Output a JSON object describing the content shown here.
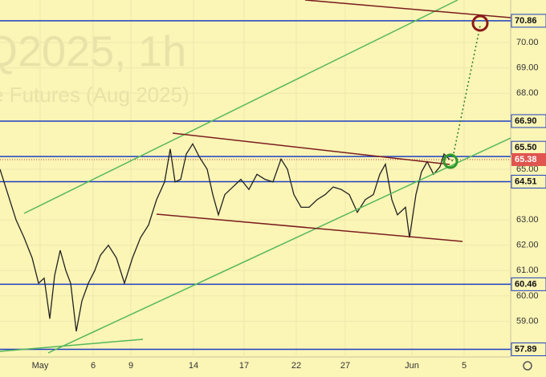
{
  "chart_data": {
    "type": "line",
    "watermark": {
      "title": "Q2025, 1h",
      "subtitle": "e Futures (Aug 2025)"
    },
    "xlim": [
      0,
      636
    ],
    "ylim": [
      57.59,
      71.68
    ],
    "xticks": [
      {
        "value": 50,
        "label": "May"
      },
      {
        "value": 116,
        "label": "6"
      },
      {
        "value": 163,
        "label": "9"
      },
      {
        "value": 241,
        "label": "14"
      },
      {
        "value": 304,
        "label": "17"
      },
      {
        "value": 369,
        "label": "22"
      },
      {
        "value": 430,
        "label": "27"
      },
      {
        "value": 513,
        "label": "Jun"
      },
      {
        "value": 578,
        "label": "5"
      }
    ],
    "yticks": [
      {
        "value": 70,
        "label": "70.00"
      },
      {
        "value": 69,
        "label": "69.00"
      },
      {
        "value": 68,
        "label": "68.00"
      },
      {
        "value": 65,
        "label": "65.00"
      },
      {
        "value": 63,
        "label": "63.00"
      },
      {
        "value": 62,
        "label": "62.00"
      },
      {
        "value": 61,
        "label": "61.00"
      },
      {
        "value": 60,
        "label": "60.00"
      },
      {
        "value": 59,
        "label": "59.00"
      }
    ],
    "levels": [
      {
        "value": 70.86,
        "label": "70.86"
      },
      {
        "value": 66.9,
        "label": "66.90"
      },
      {
        "value": 65.5,
        "label": "65.50"
      },
      {
        "value": 64.51,
        "label": "64.51"
      },
      {
        "value": 60.46,
        "label": "60.46"
      },
      {
        "value": 57.89,
        "label": "57.89"
      }
    ],
    "last_price": {
      "value": 65.38,
      "label": "65.38"
    },
    "x": [
      0,
      10,
      20,
      30,
      40,
      48,
      55,
      62,
      68,
      75,
      82,
      88,
      95,
      102,
      110,
      118,
      125,
      135,
      145,
      150,
      155,
      165,
      175,
      185,
      195,
      205,
      212,
      218,
      225,
      232,
      240,
      248,
      258,
      265,
      272,
      280,
      290,
      300,
      310,
      320,
      330,
      340,
      350,
      358,
      366,
      375,
      385,
      395,
      405,
      415,
      425,
      435,
      445,
      455,
      465,
      473,
      480,
      488,
      495,
      505,
      510,
      518,
      525,
      532,
      540,
      548,
      553,
      560
    ],
    "series": [
      {
        "color": "#222222",
        "values": [
          65.0,
          64.0,
          63.0,
          62.3,
          61.5,
          60.5,
          60.7,
          59.1,
          60.8,
          61.8,
          61.0,
          60.5,
          58.6,
          59.8,
          60.5,
          61.0,
          61.6,
          62.0,
          61.5,
          61.0,
          60.5,
          61.5,
          62.3,
          62.8,
          63.8,
          64.5,
          65.8,
          64.5,
          64.6,
          65.6,
          66.0,
          65.5,
          65.0,
          64.0,
          63.2,
          64.0,
          64.3,
          64.6,
          64.2,
          64.8,
          64.6,
          64.5,
          65.4,
          65.0,
          64.0,
          63.5,
          63.5,
          63.8,
          64.0,
          64.3,
          64.2,
          64.0,
          63.3,
          63.8,
          64.0,
          64.8,
          65.2,
          63.8,
          63.2,
          63.5,
          62.3,
          64.0,
          64.9,
          65.3,
          64.8,
          65.1,
          65.6,
          65.38
        ]
      }
    ]
  }
}
